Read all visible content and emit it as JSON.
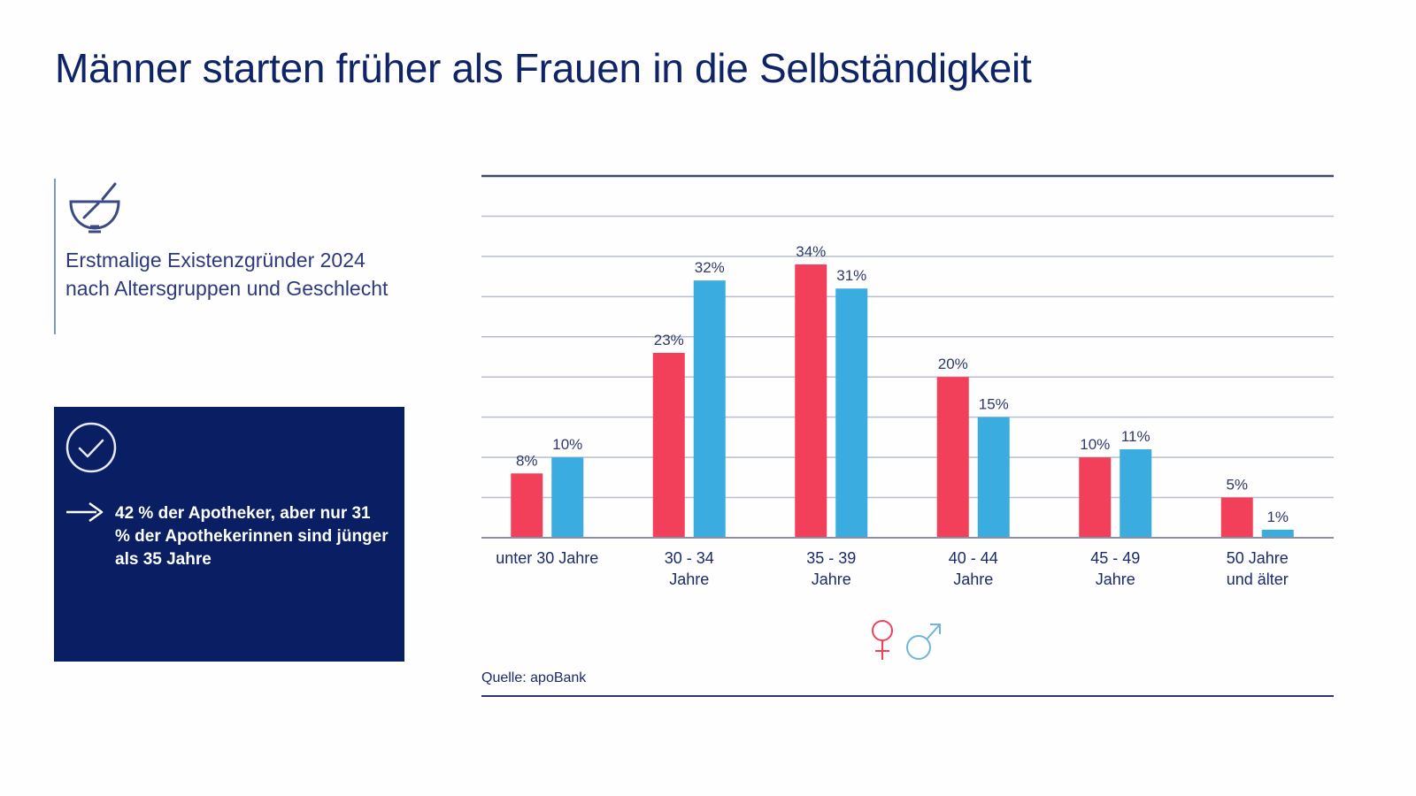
{
  "title": "Männer starten früher als Frauen in die Selbständigkeit",
  "info": {
    "icon": "mortar-pestle-icon",
    "description_lines": [
      "Erstmalige Existenzgründer 2024",
      "nach Altersgruppen und Geschlecht"
    ]
  },
  "highlight_box": {
    "icon": "check-circle-icon",
    "bullet_icon": "arrow-right-icon",
    "text": "42 % der Apotheker, aber nur 31 % der Apothekerinnen sind jünger als 35 Jahre",
    "background": "#0a1f63"
  },
  "source": "Quelle: apoBank",
  "legend": {
    "female_symbol": "♀",
    "male_symbol": "♂"
  },
  "colors": {
    "female": "#f2405a",
    "male": "#3aace0",
    "title": "#0f2466",
    "grid": "#b9bfd0"
  },
  "chart_data": {
    "type": "bar",
    "title": "Erstmalige Existenzgründer 2024 nach Altersgruppen und Geschlecht",
    "xlabel": "",
    "ylabel": "",
    "ylim": [
      0,
      45
    ],
    "grid": true,
    "gridline_step": 5,
    "legend_placement": "bottom-center",
    "categories": [
      [
        "unter 30 Jahre"
      ],
      [
        "30 - 34",
        "Jahre"
      ],
      [
        "35 - 39",
        "Jahre"
      ],
      [
        "40 - 44",
        "Jahre"
      ],
      [
        "45 - 49",
        "Jahre"
      ],
      [
        "50 Jahre",
        "und älter"
      ]
    ],
    "series": [
      {
        "name": "Frauen",
        "symbol": "♀",
        "color": "#f2405a",
        "values": [
          8,
          23,
          34,
          20,
          10,
          5
        ],
        "labels": [
          "8%",
          "23%",
          "34%",
          "20%",
          "10%",
          "5%"
        ]
      },
      {
        "name": "Männer",
        "symbol": "♂",
        "color": "#3aace0",
        "values": [
          10,
          32,
          31,
          15,
          11,
          1
        ],
        "labels": [
          "10%",
          "32%",
          "31%",
          "15%",
          "11%",
          "1%"
        ]
      }
    ]
  }
}
